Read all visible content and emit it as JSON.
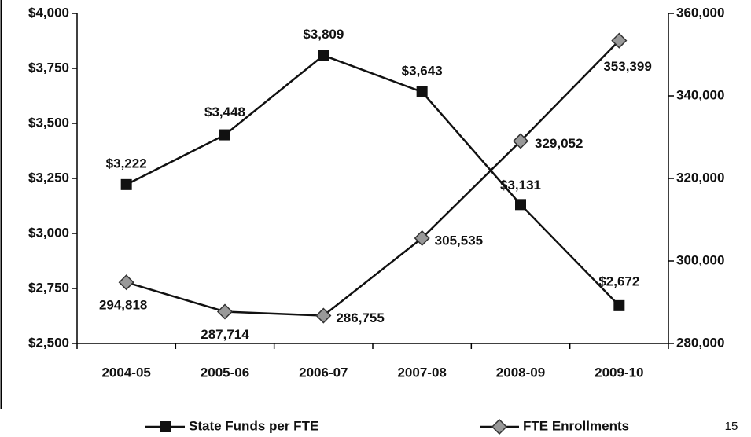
{
  "chart_data": {
    "type": "line",
    "categories": [
      "2004-05",
      "2005-06",
      "2006-07",
      "2007-08",
      "2008-09",
      "2009-10"
    ],
    "series": [
      {
        "name": "State Funds per FTE",
        "color": "#000000",
        "marker": "square",
        "values": [
          3222,
          3448,
          3809,
          3643,
          3131,
          2672
        ],
        "value_labels": [
          "$3,222",
          "$3,448",
          "$3,809",
          "$3,643",
          "$3,131",
          "$2,672"
        ]
      },
      {
        "name": "FTE Enrollments",
        "color": "#888888",
        "marker": "diamond",
        "axis": "y2",
        "values": [
          294818,
          287714,
          286755,
          305535,
          329052,
          353399
        ],
        "value_labels": [
          "294,818",
          "287,714",
          "286,755",
          "305,535",
          "329,052",
          "353,399"
        ]
      }
    ],
    "ylim": [
      2500,
      4000
    ],
    "yticks": [
      {
        "value": 2500,
        "label": "$2,500"
      },
      {
        "value": 2750,
        "label": "$2,750"
      },
      {
        "value": 3000,
        "label": "$3,000"
      },
      {
        "value": 3250,
        "label": "$3,250"
      },
      {
        "value": 3500,
        "label": "$3,500"
      },
      {
        "value": 3750,
        "label": "$3,750"
      },
      {
        "value": 4000,
        "label": "$4,000"
      }
    ],
    "y2lim": [
      280000,
      360000
    ],
    "y2ticks": [
      {
        "value": 280000,
        "label": "280,000"
      },
      {
        "value": 300000,
        "label": "300,000"
      },
      {
        "value": 320000,
        "label": "320,000"
      },
      {
        "value": 340000,
        "label": "340,000"
      },
      {
        "value": 360000,
        "label": "360,000"
      }
    ],
    "grid": false,
    "legend": "bottom",
    "annotation": "15"
  }
}
